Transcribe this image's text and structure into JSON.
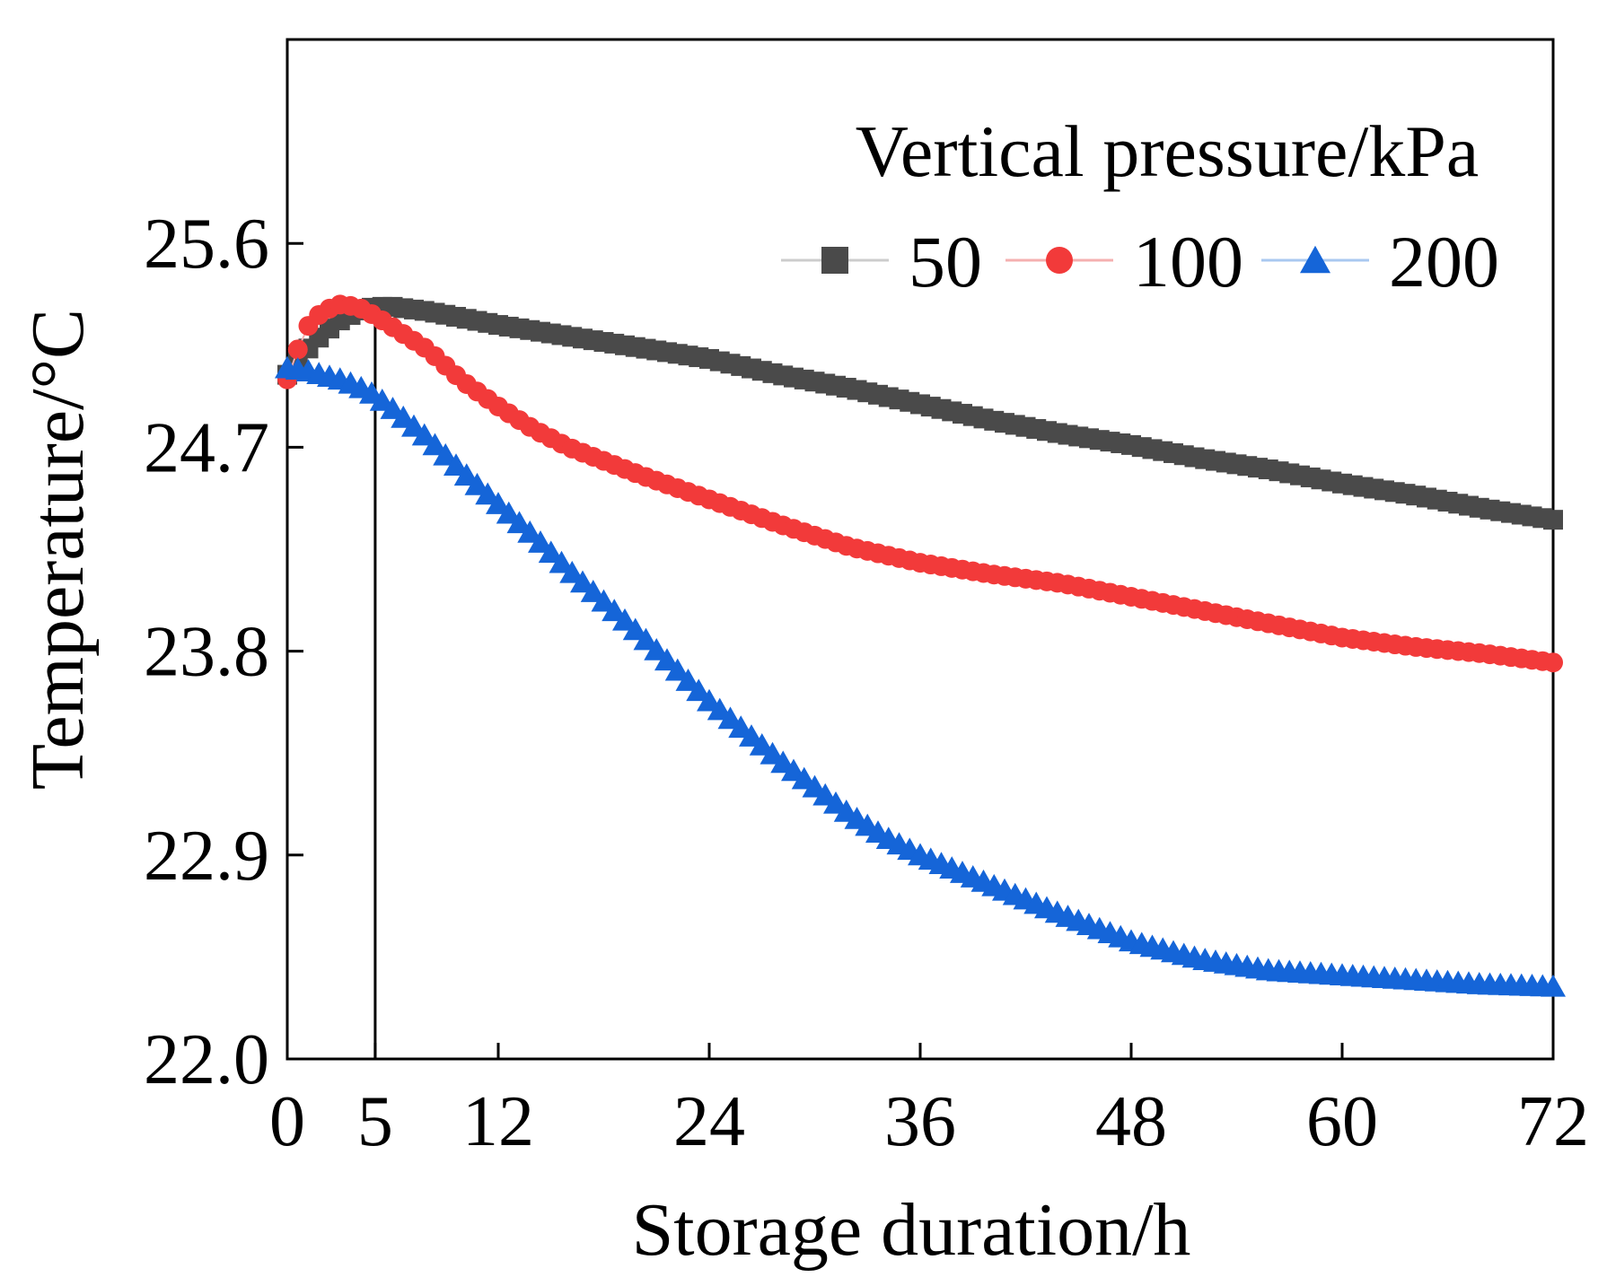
{
  "chart_data": {
    "type": "scatter",
    "title": "",
    "xlabel": "Storage duration/h",
    "ylabel": "Temperature/°C",
    "xlim": [
      0,
      72
    ],
    "ylim": [
      22.0,
      26.5
    ],
    "xticks": [
      0,
      5,
      12,
      24,
      36,
      48,
      60,
      72
    ],
    "yticks": [
      22.0,
      22.9,
      23.8,
      24.7,
      25.6
    ],
    "ytick_labels": [
      "22.0",
      "22.9",
      "23.8",
      "24.7",
      "25.6"
    ],
    "xtick_labels": [
      "0",
      "5",
      "12",
      "24",
      "36",
      "48",
      "60",
      "72"
    ],
    "vertical_marker_x": 5,
    "grid": false,
    "legend": {
      "title": "Vertical pressure/kPa",
      "placement": "top-right",
      "columns": 3
    },
    "series": [
      {
        "name": "50",
        "marker": "square",
        "color": "#4a4a4a",
        "line_color": "#cccccc",
        "x": [
          0,
          1,
          2,
          3,
          4,
          5,
          6,
          8,
          10,
          12,
          16,
          20,
          24,
          28,
          32,
          36,
          40,
          44,
          48,
          52,
          56,
          60,
          64,
          68,
          72
        ],
        "y": [
          25.02,
          25.12,
          25.2,
          25.26,
          25.3,
          25.32,
          25.32,
          25.3,
          25.27,
          25.24,
          25.19,
          25.14,
          25.09,
          25.02,
          24.96,
          24.89,
          24.82,
          24.76,
          24.71,
          24.65,
          24.6,
          24.54,
          24.49,
          24.43,
          24.38
        ]
      },
      {
        "name": "100",
        "marker": "circle",
        "color": "#f23a3a",
        "line_color": "#f5b0b0",
        "x": [
          0,
          1,
          2,
          3,
          4,
          5,
          6,
          8,
          10,
          12,
          14,
          16,
          20,
          24,
          28,
          32,
          36,
          40,
          44,
          48,
          52,
          56,
          60,
          64,
          68,
          72
        ],
        "y": [
          25.0,
          25.22,
          25.3,
          25.33,
          25.32,
          25.28,
          25.23,
          25.13,
          24.99,
          24.88,
          24.78,
          24.7,
          24.58,
          24.47,
          24.36,
          24.26,
          24.19,
          24.14,
          24.1,
          24.04,
          23.98,
          23.92,
          23.86,
          23.82,
          23.79,
          23.75
        ]
      },
      {
        "name": "200",
        "marker": "triangle",
        "color": "#1565d8",
        "line_color": "#a9c8f0",
        "x": [
          0,
          1,
          2,
          3,
          4,
          5,
          6,
          8,
          10,
          12,
          14,
          16,
          18,
          20,
          22,
          24,
          26,
          28,
          30,
          32,
          34,
          36,
          40,
          44,
          48,
          52,
          56,
          60,
          64,
          68,
          72
        ],
        "y": [
          25.05,
          25.04,
          25.02,
          25.0,
          24.97,
          24.93,
          24.87,
          24.74,
          24.59,
          24.45,
          24.31,
          24.16,
          24.02,
          23.88,
          23.73,
          23.58,
          23.45,
          23.32,
          23.2,
          23.08,
          22.98,
          22.9,
          22.77,
          22.64,
          22.52,
          22.44,
          22.39,
          22.37,
          22.35,
          22.33,
          22.32
        ]
      }
    ]
  }
}
